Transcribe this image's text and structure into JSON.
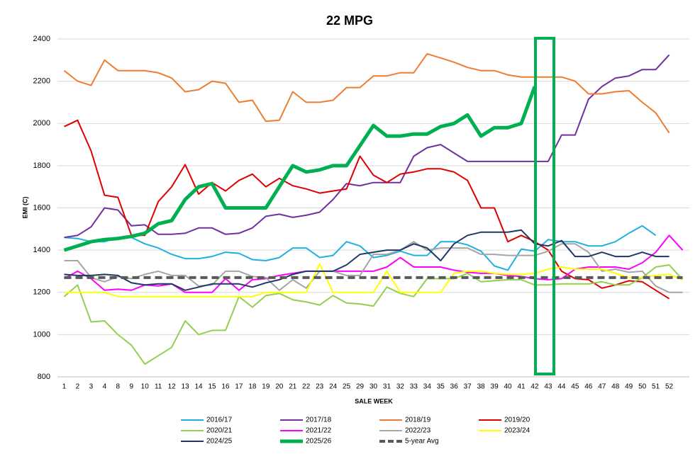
{
  "chart_data": {
    "type": "line",
    "title": "22 MPG",
    "x_label": "SALE WEEK",
    "y_label": "EMI (C)",
    "categories": [
      "1",
      "2",
      "3",
      "4",
      "8",
      "9",
      "10",
      "11",
      "12",
      "13",
      "14",
      "15",
      "16",
      "17",
      "18",
      "19",
      "20",
      "21",
      "22",
      "23",
      "24",
      "25",
      "29",
      "30",
      "31",
      "32",
      "33",
      "34",
      "35",
      "36",
      "37",
      "38",
      "39",
      "40",
      "41",
      "42",
      "43",
      "44",
      "45",
      "46",
      "47",
      "48",
      "49",
      "50",
      "51",
      "52",
      null
    ],
    "ylim": [
      800,
      2400
    ],
    "yticks": [
      800,
      1000,
      1200,
      1400,
      1600,
      1800,
      2000,
      2200,
      2400
    ],
    "grid": true,
    "series": [
      {
        "name": "2016/17",
        "color": "#1fb0e0",
        "width": 2,
        "values": [
          1460,
          1455,
          1440,
          1440,
          1460,
          1460,
          1430,
          1410,
          1380,
          1360,
          1360,
          1370,
          1390,
          1385,
          1355,
          1350,
          1365,
          1410,
          1410,
          1365,
          1375,
          1440,
          1420,
          1365,
          1375,
          1395,
          1375,
          1375,
          1440,
          1440,
          1425,
          1395,
          1325,
          1305,
          1405,
          1395,
          1450,
          1440,
          1440,
          1420,
          1420,
          1440,
          1480,
          1515,
          1470,
          null,
          null
        ]
      },
      {
        "name": "2017/18",
        "color": "#7030a0",
        "width": 2,
        "values": [
          1460,
          1470,
          1510,
          1600,
          1590,
          1515,
          1520,
          1475,
          1475,
          1480,
          1505,
          1505,
          1475,
          1480,
          1505,
          1560,
          1570,
          1555,
          1565,
          1580,
          1640,
          1715,
          1705,
          1720,
          1720,
          1720,
          1845,
          1885,
          1900,
          1860,
          1820,
          1820,
          1820,
          1820,
          1820,
          1820,
          1820,
          1945,
          1945,
          2115,
          2175,
          2215,
          2225,
          2255,
          2255,
          2325,
          null
        ]
      },
      {
        "name": "2018/19",
        "color": "#ed7d31",
        "width": 2,
        "values": [
          2250,
          2200,
          2180,
          2300,
          2250,
          2250,
          2250,
          2240,
          2215,
          2150,
          2160,
          2200,
          2190,
          2100,
          2110,
          2010,
          2015,
          2150,
          2100,
          2100,
          2110,
          2170,
          2170,
          2225,
          2225,
          2240,
          2240,
          2330,
          2310,
          2290,
          2265,
          2250,
          2250,
          2230,
          2220,
          2220,
          2220,
          2220,
          2200,
          2140,
          2140,
          2150,
          2155,
          2100,
          2050,
          1955,
          null
        ]
      },
      {
        "name": "2019/20",
        "color": "#e00000",
        "width": 2,
        "values": [
          1985,
          2015,
          1870,
          1660,
          1650,
          1470,
          1470,
          1630,
          1700,
          1805,
          1665,
          1720,
          1680,
          1730,
          1760,
          1700,
          1740,
          1705,
          1690,
          1670,
          1680,
          1690,
          1845,
          1755,
          1720,
          1760,
          1770,
          1785,
          1785,
          1770,
          1730,
          1600,
          1600,
          1440,
          1470,
          1440,
          1400,
          1300,
          1265,
          1260,
          1220,
          1235,
          1255,
          1250,
          1210,
          1170,
          null
        ]
      },
      {
        "name": "2020/21",
        "color": "#92d050",
        "width": 2,
        "values": [
          1180,
          1235,
          1060,
          1065,
          1000,
          950,
          860,
          900,
          940,
          1065,
          1000,
          1020,
          1020,
          1180,
          1130,
          1185,
          1195,
          1165,
          1155,
          1140,
          1185,
          1150,
          1145,
          1135,
          1225,
          1195,
          1180,
          1265,
          1265,
          1265,
          1290,
          1250,
          1255,
          1260,
          1260,
          1235,
          1235,
          1240,
          1240,
          1240,
          1250,
          1235,
          1235,
          1270,
          1320,
          1330,
          1260
        ]
      },
      {
        "name": "2021/22",
        "color": "#ff00ff",
        "width": 2,
        "values": [
          1265,
          1300,
          1265,
          1210,
          1215,
          1210,
          1235,
          1230,
          1240,
          1200,
          1200,
          1200,
          1265,
          1210,
          1260,
          1265,
          1280,
          1290,
          1300,
          1300,
          1300,
          1300,
          1300,
          1300,
          1320,
          1365,
          1320,
          1320,
          1320,
          1305,
          1295,
          1290,
          1290,
          1280,
          1275,
          1265,
          1260,
          1265,
          1310,
          1320,
          1320,
          1320,
          1310,
          1340,
          1390,
          1470,
          1400
        ]
      },
      {
        "name": "2022/23",
        "color": "#a5a5a5",
        "width": 2,
        "values": [
          1350,
          1350,
          1270,
          1250,
          1275,
          1265,
          1285,
          1300,
          1280,
          1280,
          1230,
          1235,
          1300,
          1300,
          1275,
          1270,
          1210,
          1260,
          1220,
          1300,
          1300,
          1280,
          1280,
          1380,
          1380,
          1400,
          1440,
          1400,
          1410,
          1410,
          1410,
          1380,
          1380,
          1375,
          1375,
          1375,
          1395,
          1430,
          1430,
          1390,
          1300,
          1310,
          1295,
          1300,
          1230,
          1200,
          1200
        ]
      },
      {
        "name": "2023/24",
        "color": "#ffff00",
        "width": 2,
        "values": [
          1200,
          1200,
          1200,
          1200,
          1180,
          1180,
          1180,
          1180,
          1180,
          1180,
          1180,
          1180,
          1180,
          1180,
          1180,
          1200,
          1200,
          1200,
          1200,
          1335,
          1200,
          1200,
          1200,
          1200,
          1300,
          1200,
          1200,
          1200,
          1200,
          1290,
          1300,
          1300,
          1290,
          1285,
          1285,
          1290,
          1310,
          1320,
          1310,
          1310,
          1310,
          1290,
          1270,
          1270,
          1280,
          1285,
          1260
        ]
      },
      {
        "name": "2024/25",
        "color": "#1f3864",
        "width": 2,
        "values": [
          1285,
          1280,
          1280,
          1285,
          1280,
          1245,
          1235,
          1240,
          1240,
          1210,
          1225,
          1240,
          1240,
          1240,
          1225,
          1245,
          1260,
          1285,
          1300,
          1300,
          1300,
          1330,
          1380,
          1390,
          1400,
          1400,
          1430,
          1410,
          1350,
          1430,
          1470,
          1485,
          1485,
          1485,
          1495,
          1430,
          1420,
          1445,
          1370,
          1370,
          1390,
          1370,
          1370,
          1390,
          1370,
          1370,
          null
        ]
      },
      {
        "name": "2025/26",
        "color": "#00b050",
        "width": 5,
        "values": [
          1400,
          1420,
          1440,
          1450,
          1455,
          1465,
          1480,
          1525,
          1540,
          1640,
          1700,
          1715,
          1600,
          1600,
          1600,
          1600,
          1700,
          1800,
          1770,
          1780,
          1800,
          1800,
          1895,
          1990,
          1940,
          1940,
          1950,
          1950,
          1985,
          2000,
          2040,
          1940,
          1980,
          1980,
          2000,
          2175,
          null,
          null,
          null,
          null,
          null,
          null,
          null,
          null,
          null,
          null,
          null
        ]
      },
      {
        "name": "5-year Avg",
        "color": "#595959",
        "width": 4,
        "dashed": true,
        "values": [
          1270,
          1270,
          1270,
          1270,
          1270,
          1270,
          1270,
          1270,
          1270,
          1270,
          1270,
          1270,
          1270,
          1270,
          1270,
          1270,
          1270,
          1270,
          1270,
          1270,
          1270,
          1270,
          1270,
          1270,
          1270,
          1270,
          1270,
          1270,
          1270,
          1270,
          1270,
          1270,
          1270,
          1270,
          1270,
          1270,
          1270,
          1270,
          1270,
          1270,
          1270,
          1270,
          1270,
          1270,
          1270,
          1270,
          1270
        ]
      }
    ]
  }
}
